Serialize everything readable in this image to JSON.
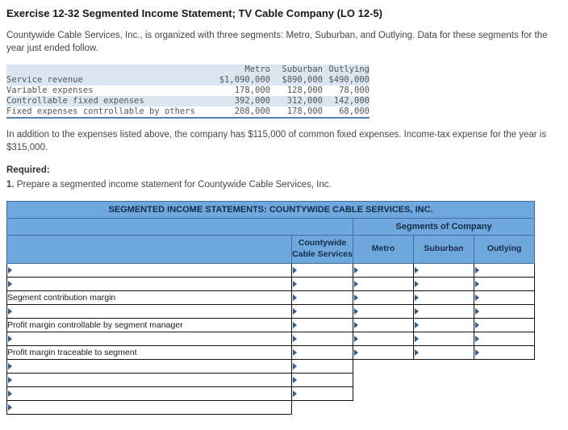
{
  "header": {
    "title": "Exercise 12-32 Segmented Income Statement; TV Cable Company (LO 12-5)"
  },
  "intro": "Countywide Cable Services, Inc., is organized with three segments: Metro, Suburban, and Outlying. Data for these segments for the year just ended follow.",
  "given_table": {
    "columns": [
      "Metro",
      "Suburban",
      "Outlying"
    ],
    "rows": [
      {
        "label": "Service revenue",
        "values": [
          "$1,090,000",
          "$890,000",
          "$490,000"
        ]
      },
      {
        "label": "Variable expenses",
        "values": [
          "178,000",
          "128,000",
          "78,000"
        ]
      },
      {
        "label": "Controllable fixed expenses",
        "values": [
          "392,000",
          "312,000",
          "142,000"
        ]
      },
      {
        "label": "Fixed expenses controllable by others",
        "values": [
          "208,000",
          "178,000",
          "68,000"
        ]
      }
    ]
  },
  "note": "In addition to the expenses listed above, the company has $115,000 of common fixed expenses. Income-tax expense for the year is $315,000.",
  "required": {
    "label": "Required:",
    "item_number": "1.",
    "item_text": "Prepare a segmented income statement for Countywide Cable Services, Inc."
  },
  "worksheet": {
    "title": "SEGMENTED INCOME STATEMENTS: COUNTYWIDE CABLE SERVICES, INC.",
    "segments_header": "Segments of Company",
    "columns": [
      "Countywide Cable Services",
      "Metro",
      "Suburban",
      "Outlying"
    ],
    "rows": [
      {
        "label": "",
        "label_editable": true,
        "input_cells": 4
      },
      {
        "label": "",
        "label_editable": true,
        "input_cells": 4
      },
      {
        "label": "Segment contribution margin",
        "label_editable": false,
        "input_cells": 4
      },
      {
        "label": "",
        "label_editable": true,
        "input_cells": 4
      },
      {
        "label": "Profit margin controllable by segment manager",
        "label_editable": false,
        "input_cells": 4
      },
      {
        "label": "",
        "label_editable": true,
        "input_cells": 4
      },
      {
        "label": "Profit margin traceable to segment",
        "label_editable": false,
        "input_cells": 4
      },
      {
        "label": "",
        "label_editable": true,
        "input_cells": 1
      },
      {
        "label": "",
        "label_editable": true,
        "input_cells": 1
      },
      {
        "label": "",
        "label_editable": true,
        "input_cells": 1
      },
      {
        "label": "",
        "label_editable": true,
        "input_cells": 0
      }
    ]
  },
  "colors": {
    "worksheet_header_bg": "#6fa8dc",
    "worksheet_header_border": "#3d6fa6",
    "shaded_row_bg": "#dce6f1",
    "table_rule_blue": "#4f81bd",
    "cell_marker_blue": "#2f5c8f"
  }
}
